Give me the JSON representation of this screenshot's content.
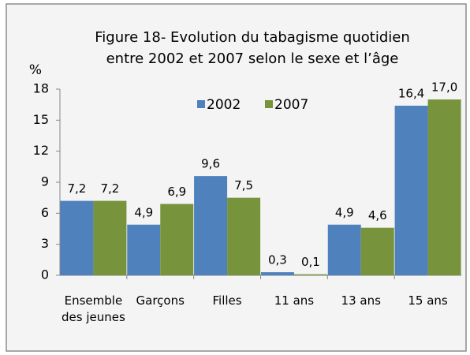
{
  "chart_data": {
    "type": "bar",
    "title": [
      "Figure 18- Evolution du tabagisme quotidien",
      "entre 2002 et 2007 selon le sexe et l’âge"
    ],
    "y_label": "%",
    "categories": [
      "Ensemble des jeunes",
      "Garçons",
      "Filles",
      "11 ans",
      "13 ans",
      "15 ans"
    ],
    "series": [
      {
        "name": "2002",
        "color": "#4f81bd",
        "values": [
          7.2,
          4.9,
          9.6,
          0.3,
          4.9,
          16.4
        ],
        "value_labels": [
          "7,2",
          "4,9",
          "9,6",
          "0,3",
          "4,9",
          "16,4"
        ]
      },
      {
        "name": "2007",
        "color": "#77933c",
        "values": [
          7.2,
          6.9,
          7.5,
          0.1,
          4.6,
          17.0
        ],
        "value_labels": [
          "7,2",
          "6,9",
          "7,5",
          "0,1",
          "4,6",
          "17,0"
        ]
      }
    ],
    "ylim": [
      0,
      18
    ],
    "yticks": [
      0,
      3,
      6,
      9,
      12,
      15,
      18
    ],
    "grid": false,
    "legend": "top"
  }
}
